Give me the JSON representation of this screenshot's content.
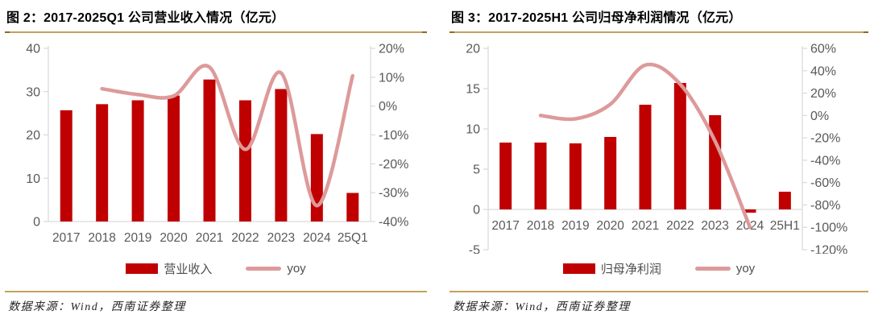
{
  "colors": {
    "bar": "#c00000",
    "line": "#dd9a9a",
    "axis": "#d9d9d9",
    "tick_label": "#595959",
    "gold": "#c5a05f",
    "legend_label": "#4d4d4d"
  },
  "sources": [
    "数据来源：Wind，西南证券整理",
    "数据来源：Wind，西南证券整理"
  ],
  "chart_data": [
    {
      "type": "bar",
      "title": "图 2：2017-2025Q1 公司营业收入情况（亿元）",
      "categories": [
        "2017",
        "2018",
        "2019",
        "2020",
        "2021",
        "2022",
        "2023",
        "2024",
        "25Q1"
      ],
      "series": [
        {
          "name": "营业收入",
          "type": "bar",
          "axis": "left",
          "values": [
            25.7,
            27.1,
            28.0,
            29.1,
            32.8,
            28.0,
            30.6,
            20.2,
            6.6
          ]
        },
        {
          "name": "yoy",
          "type": "line",
          "axis": "right",
          "values": [
            null,
            6,
            4,
            3.5,
            13.5,
            -15,
            11.5,
            -34.5,
            10.5
          ]
        }
      ],
      "left_axis": {
        "range": [
          0,
          40
        ],
        "ticks": [
          40,
          30,
          20,
          10,
          0
        ]
      },
      "right_axis": {
        "range": [
          -40,
          20
        ],
        "ticks": [
          20,
          10,
          0,
          -10,
          -20,
          -30,
          -40
        ],
        "format": "percent"
      },
      "grid": false,
      "legend_position": "bottom"
    },
    {
      "type": "bar",
      "title": "图 3：2017-2025H1 公司归母净利润情况（亿元）",
      "categories": [
        "2017",
        "2018",
        "2019",
        "2020",
        "2021",
        "2022",
        "2023",
        "2024",
        "25H1"
      ],
      "series": [
        {
          "name": "归母净利润",
          "type": "bar",
          "axis": "left",
          "values": [
            8.3,
            8.3,
            8.2,
            9.0,
            13.0,
            15.7,
            11.7,
            -0.4,
            2.2
          ]
        },
        {
          "name": "yoy",
          "type": "line",
          "axis": "right",
          "values": [
            null,
            0,
            -3,
            10,
            45,
            28,
            -23,
            -100,
            null
          ]
        }
      ],
      "left_axis": {
        "range": [
          -5,
          20
        ],
        "ticks": [
          20,
          15,
          10,
          5,
          0,
          -5
        ]
      },
      "right_axis": {
        "range": [
          -120,
          60
        ],
        "ticks": [
          60,
          40,
          20,
          0,
          -20,
          -40,
          -60,
          -80,
          -100,
          -120
        ],
        "format": "percent"
      },
      "grid": false,
      "legend_position": "bottom"
    }
  ]
}
